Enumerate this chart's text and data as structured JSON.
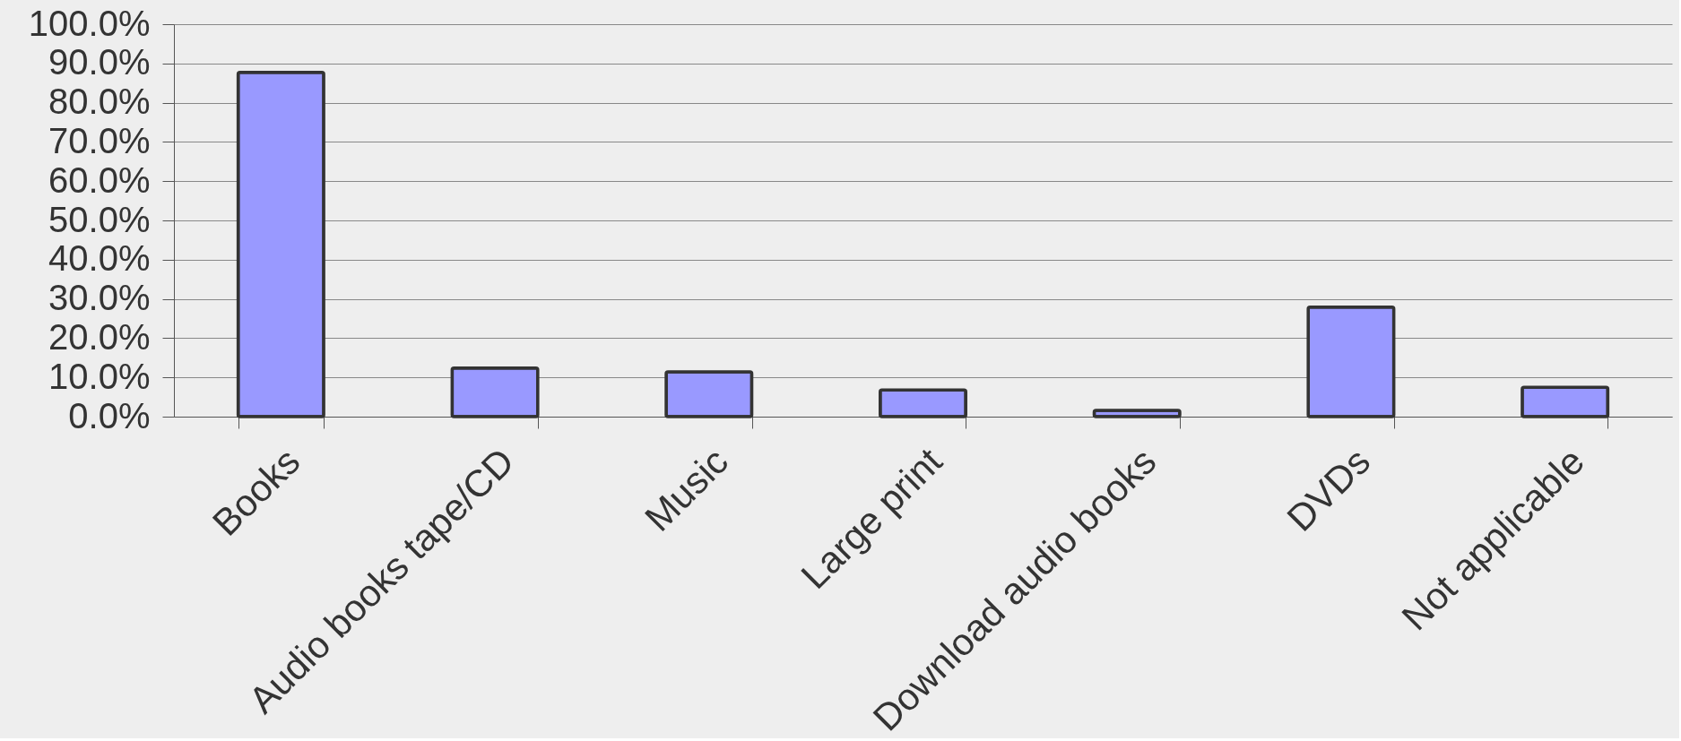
{
  "chart_data": {
    "type": "bar",
    "categories": [
      "Books",
      "Audio books tape/CD",
      "Music",
      "Large print",
      "Download audio books",
      "DVDs",
      "Not applicable"
    ],
    "values": [
      87.7,
      12.4,
      11.4,
      6.8,
      1.6,
      27.9,
      7.5
    ],
    "color": "#9999ff",
    "ylim": [
      0,
      100
    ],
    "yticks": [
      {
        "value": 0,
        "label": "0.0%"
      },
      {
        "value": 10,
        "label": "10.0%"
      },
      {
        "value": 20,
        "label": "20.0%"
      },
      {
        "value": 30,
        "label": "30.0%"
      },
      {
        "value": 40,
        "label": "40.0%"
      },
      {
        "value": 50,
        "label": "50.0%"
      },
      {
        "value": 60,
        "label": "60.0%"
      },
      {
        "value": 70,
        "label": "70.0%"
      },
      {
        "value": 80,
        "label": "80.0%"
      },
      {
        "value": 90,
        "label": "90.0%"
      },
      {
        "value": 100,
        "label": "100.0%"
      }
    ],
    "grid": "y"
  }
}
